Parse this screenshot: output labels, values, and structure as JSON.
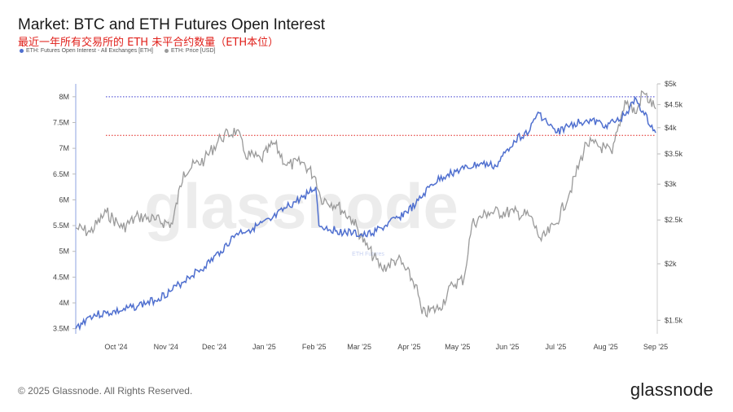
{
  "header": {
    "title": "Market: BTC and ETH Futures Open Interest",
    "subtitle": "最近一年所有交易所的 ETH 未平合约数量（ETH本位）"
  },
  "footer": {
    "copyright": "© 2025 Glassnode. All Rights Reserved.",
    "logo": "glassnode"
  },
  "watermark": {
    "main": "glassnode",
    "sub": "ETH Futures"
  },
  "colors": {
    "oi": "#4f6fcf",
    "price": "#9a9a9a",
    "ath_line": "#3a3ad0",
    "ref_line": "#e0201b"
  },
  "chart_data": {
    "type": "line",
    "title": "Market: BTC and ETH Futures Open Interest",
    "x_range": [
      "2024-09-06",
      "2025-09-01"
    ],
    "x_ticks": [
      "Oct '24",
      "Nov '24",
      "Dec '24",
      "Jan '25",
      "Feb '25",
      "Mar '25",
      "Apr '25",
      "May '25",
      "Jun '25",
      "Jul '25",
      "Aug '25",
      "Sep '25"
    ],
    "y_left": {
      "label": "ETH: Futures Open Interest - All Exchanges [ETH]",
      "range": [
        3400000,
        8250000
      ],
      "ticks": [
        "3.5M",
        "4M",
        "4.5M",
        "5M",
        "5.5M",
        "6M",
        "6.5M",
        "7M",
        "7.5M",
        "8M"
      ]
    },
    "y_right": {
      "label": "ETH: Price [USD]",
      "range": [
        1400,
        5000
      ],
      "scale": "log",
      "ticks": [
        "$1.5k",
        "$2k",
        "$2.5k",
        "$3k",
        "$3.5k",
        "$4k",
        "$4.5k",
        "$5k"
      ]
    },
    "reference_lines": [
      {
        "axis": "left",
        "value": 8000000,
        "style": "dotted",
        "color": "blue"
      },
      {
        "axis": "left",
        "value": 7250000,
        "style": "dotted",
        "color": "red"
      }
    ],
    "series": [
      {
        "name": "ETH: Futures Open Interest - All Exchanges [ETH]",
        "axis": "left",
        "color": "#4f6fcf",
        "points": [
          [
            "2024-09-06",
            3500000
          ],
          [
            "2024-09-15",
            3750000
          ],
          [
            "2024-09-25",
            3800000
          ],
          [
            "2024-10-05",
            3850000
          ],
          [
            "2024-10-15",
            3950000
          ],
          [
            "2024-10-25",
            4050000
          ],
          [
            "2024-11-05",
            4250000
          ],
          [
            "2024-11-15",
            4500000
          ],
          [
            "2024-11-25",
            4700000
          ],
          [
            "2024-12-05",
            5000000
          ],
          [
            "2024-12-15",
            5350000
          ],
          [
            "2024-12-25",
            5450000
          ],
          [
            "2025-01-05",
            5600000
          ],
          [
            "2025-01-15",
            5850000
          ],
          [
            "2025-01-25",
            6050000
          ],
          [
            "2025-02-02",
            6250000
          ],
          [
            "2025-02-04",
            5500000
          ],
          [
            "2025-02-15",
            5400000
          ],
          [
            "2025-02-25",
            5350000
          ],
          [
            "2025-03-05",
            5300000
          ],
          [
            "2025-03-15",
            5450000
          ],
          [
            "2025-03-25",
            5650000
          ],
          [
            "2025-04-05",
            5900000
          ],
          [
            "2025-04-15",
            6300000
          ],
          [
            "2025-04-25",
            6500000
          ],
          [
            "2025-05-05",
            6600000
          ],
          [
            "2025-05-15",
            6700000
          ],
          [
            "2025-05-25",
            6650000
          ],
          [
            "2025-06-05",
            7150000
          ],
          [
            "2025-06-15",
            7350000
          ],
          [
            "2025-06-20",
            7700000
          ],
          [
            "2025-07-01",
            7300000
          ],
          [
            "2025-07-10",
            7450000
          ],
          [
            "2025-07-20",
            7550000
          ],
          [
            "2025-08-01",
            7450000
          ],
          [
            "2025-08-10",
            7550000
          ],
          [
            "2025-08-20",
            7950000
          ],
          [
            "2025-08-25",
            7650000
          ],
          [
            "2025-09-01",
            7300000
          ]
        ]
      },
      {
        "name": "ETH: Price [USD]",
        "axis": "right",
        "color": "#9a9a9a",
        "points": [
          [
            "2024-09-06",
            2400
          ],
          [
            "2024-09-15",
            2350
          ],
          [
            "2024-09-25",
            2600
          ],
          [
            "2024-10-05",
            2400
          ],
          [
            "2024-10-15",
            2550
          ],
          [
            "2024-10-25",
            2500
          ],
          [
            "2024-11-05",
            2450
          ],
          [
            "2024-11-12",
            3200
          ],
          [
            "2024-11-25",
            3400
          ],
          [
            "2024-12-05",
            3800
          ],
          [
            "2024-12-15",
            3950
          ],
          [
            "2024-12-20",
            3500
          ],
          [
            "2024-12-30",
            3400
          ],
          [
            "2025-01-07",
            3700
          ],
          [
            "2025-01-15",
            3300
          ],
          [
            "2025-01-25",
            3350
          ],
          [
            "2025-02-02",
            3100
          ],
          [
            "2025-02-05",
            2800
          ],
          [
            "2025-02-15",
            2700
          ],
          [
            "2025-02-25",
            2500
          ],
          [
            "2025-03-05",
            2200
          ],
          [
            "2025-03-15",
            1950
          ],
          [
            "2025-03-25",
            2050
          ],
          [
            "2025-04-05",
            1800
          ],
          [
            "2025-04-09",
            1550
          ],
          [
            "2025-04-20",
            1600
          ],
          [
            "2025-04-28",
            1800
          ],
          [
            "2025-05-05",
            1850
          ],
          [
            "2025-05-10",
            2450
          ],
          [
            "2025-05-20",
            2600
          ],
          [
            "2025-06-05",
            2600
          ],
          [
            "2025-06-15",
            2550
          ],
          [
            "2025-06-22",
            2250
          ],
          [
            "2025-07-01",
            2450
          ],
          [
            "2025-07-10",
            2900
          ],
          [
            "2025-07-20",
            3700
          ],
          [
            "2025-08-01",
            3600
          ],
          [
            "2025-08-05",
            3500
          ],
          [
            "2025-08-13",
            4600
          ],
          [
            "2025-08-20",
            4300
          ],
          [
            "2025-08-24",
            4800
          ],
          [
            "2025-09-01",
            4400
          ]
        ]
      }
    ]
  }
}
